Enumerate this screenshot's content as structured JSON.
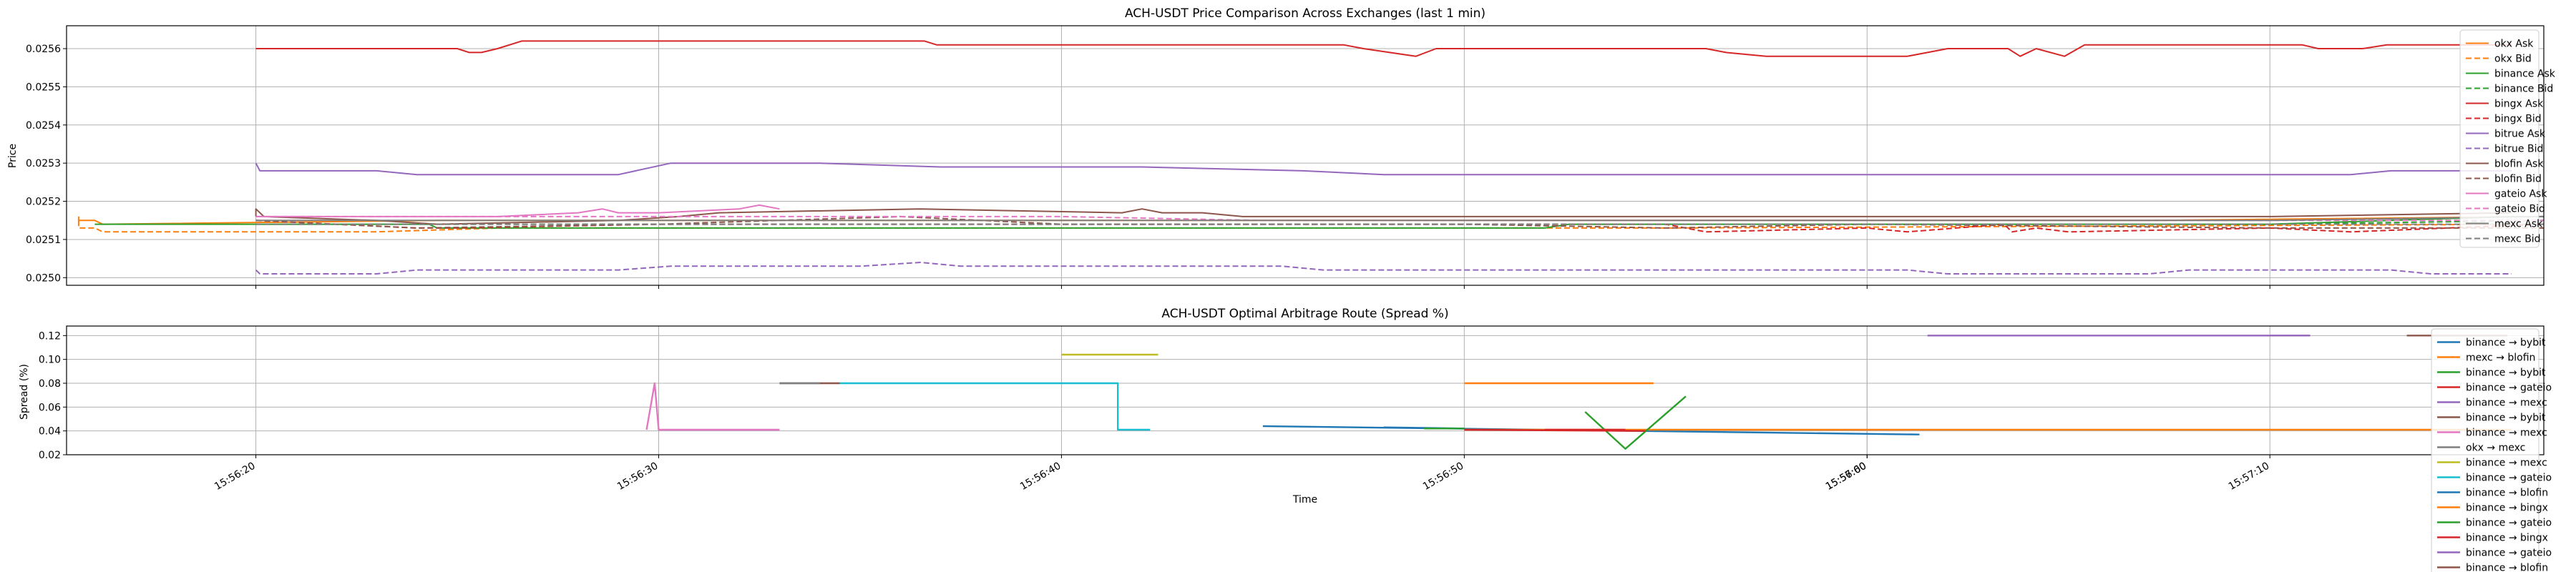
{
  "chart_data": [
    {
      "type": "line",
      "title": "ACH-USDT Price Comparison Across Exchanges (last 1 min)",
      "xlabel": "",
      "ylabel": "Price",
      "ylim": [
        0.02498,
        0.02566
      ],
      "yticks": [
        "0.0250",
        "0.0251",
        "0.0252",
        "0.0253",
        "0.0254",
        "0.0255",
        "0.0256"
      ],
      "xlim": [
        "15:56:15.3",
        "15:57:16.8"
      ],
      "xticks": [
        "15:56:20",
        "15:56:30",
        "15:56:40",
        "15:56:50",
        "15:57:00",
        "15:57:10"
      ],
      "grid": true,
      "legend": "right",
      "series": [
        {
          "name": "okx Ask",
          "color": "#ff7f0e",
          "dash": false,
          "x": [
            "15:56:15.6",
            "15:56:15.6",
            "15:56:16.0",
            "15:56:16.2",
            "15:56:24.6",
            "15:56:25.0",
            "15:56:38.0",
            "15:56:55.0",
            "15:57:07.0",
            "15:57:16.8"
          ],
          "y": [
            0.02516,
            0.02515,
            0.02515,
            0.02514,
            0.02515,
            0.02515,
            0.02515,
            0.02515,
            0.02515,
            0.02516
          ]
        },
        {
          "name": "okx Bid",
          "color": "#ff7f0e",
          "dash": true,
          "x": [
            "15:56:15.6",
            "15:56:15.6",
            "15:56:16.0",
            "15:56:16.2",
            "15:56:20.0",
            "15:56:23.0",
            "15:56:26.0",
            "15:56:40.0",
            "15:56:55.0",
            "15:57:16.8"
          ],
          "y": [
            0.02515,
            0.02513,
            0.02513,
            0.02512,
            0.02512,
            0.02512,
            0.02513,
            0.02513,
            0.02513,
            0.02514
          ]
        },
        {
          "name": "binance Ask",
          "color": "#2ca02c",
          "dash": false,
          "x": [
            "15:56:16.0",
            "15:56:20.0",
            "15:56:24.3",
            "15:56:24.5",
            "15:56:30.0",
            "15:56:40.0",
            "15:56:52.0",
            "15:56:52.6",
            "15:57:00.0",
            "15:57:10.0",
            "15:57:16.0",
            "15:57:16.8"
          ],
          "y": [
            0.02514,
            0.02514,
            0.02514,
            0.02513,
            0.02513,
            0.02513,
            0.02513,
            0.02514,
            0.02514,
            0.02514,
            0.02516,
            0.02516
          ]
        },
        {
          "name": "binance Bid",
          "color": "#2ca02c",
          "dash": true,
          "x": [
            "15:56:20.0",
            "15:56:30.0",
            "15:56:40.0",
            "15:56:50.0",
            "15:57:00.0",
            "15:57:10.0",
            "15:57:16.8"
          ],
          "y": [
            0.02514,
            0.02514,
            0.02514,
            0.02514,
            0.02514,
            0.02514,
            0.02515
          ]
        },
        {
          "name": "bingx Ask",
          "color": "#d62728",
          "dash": false,
          "x": [
            "15:56:20.0",
            "15:56:25.0",
            "15:56:25.3",
            "15:56:25.6",
            "15:56:26.0",
            "15:56:26.6",
            "15:56:36.6",
            "15:56:36.9",
            "15:56:47.0",
            "15:56:47.5",
            "15:56:48.8",
            "15:56:49.3",
            "15:56:50.0",
            "15:56:56.0",
            "15:56:56.5",
            "15:56:57.5",
            "15:57:01.0",
            "15:57:01.5",
            "15:57:02.0",
            "15:57:03.5",
            "15:57:03.8",
            "15:57:04.2",
            "15:57:04.9",
            "15:57:05.4",
            "15:57:10.8",
            "15:57:11.2",
            "15:57:12.3",
            "15:57:12.9",
            "15:57:16.0"
          ],
          "y": [
            0.0256,
            0.0256,
            0.02559,
            0.02559,
            0.0256,
            0.02562,
            0.02562,
            0.02561,
            0.02561,
            0.0256,
            0.02558,
            0.0256,
            0.0256,
            0.0256,
            0.02559,
            0.02558,
            0.02558,
            0.02559,
            0.0256,
            0.0256,
            0.02558,
            0.0256,
            0.02558,
            0.02561,
            0.02561,
            0.0256,
            0.0256,
            0.02561,
            0.02561
          ]
        },
        {
          "name": "bingx Bid",
          "color": "#d62728",
          "dash": true,
          "x": [
            "15:56:20.0",
            "15:56:24.0",
            "15:56:25.0",
            "15:56:30.0",
            "15:56:40.0",
            "15:56:55.0",
            "15:56:56.0",
            "15:57:00.0",
            "15:57:01.0",
            "15:57:03.4",
            "15:57:03.6",
            "15:57:04.2",
            "15:57:05.0",
            "15:57:10.0",
            "15:57:12.0",
            "15:57:16.8"
          ],
          "y": [
            0.02515,
            0.02513,
            0.02513,
            0.02514,
            0.02514,
            0.02514,
            0.02512,
            0.02513,
            0.02512,
            0.02514,
            0.02512,
            0.02513,
            0.02512,
            0.02513,
            0.02512,
            0.02514
          ]
        },
        {
          "name": "bitrue Ask",
          "color": "#9467bd",
          "dash": false,
          "x": [
            "15:56:20.0",
            "15:56:20.1",
            "15:56:20.2",
            "15:56:23.0",
            "15:56:24.0",
            "15:56:29.0",
            "15:56:30.3",
            "15:56:34.0",
            "15:56:37.0",
            "15:56:42.0",
            "15:56:46.0",
            "15:56:48.0",
            "15:56:55.0",
            "15:57:10.0",
            "15:57:12.0",
            "15:57:13.0",
            "15:57:16.0"
          ],
          "y": [
            0.0253,
            0.02528,
            0.02528,
            0.02528,
            0.02527,
            0.02527,
            0.0253,
            0.0253,
            0.02529,
            0.02529,
            0.02528,
            0.02527,
            0.02527,
            0.02527,
            0.02527,
            0.02528,
            0.02528
          ]
        },
        {
          "name": "bitrue Bid",
          "color": "#9467bd",
          "dash": true,
          "x": [
            "15:56:20.0",
            "15:56:20.1",
            "15:56:20.2",
            "15:56:23.0",
            "15:56:24.0",
            "15:56:29.0",
            "15:56:30.3",
            "15:56:35.0",
            "15:56:36.5",
            "15:56:37.5",
            "15:56:41.0",
            "15:56:45.5",
            "15:56:46.5",
            "15:56:55.0",
            "15:57:01.0",
            "15:57:02.0",
            "15:57:07.0",
            "15:57:08.0",
            "15:57:13.0",
            "15:57:14.0",
            "15:57:16.0"
          ],
          "y": [
            0.02502,
            0.02501,
            0.02501,
            0.02501,
            0.02502,
            0.02502,
            0.02503,
            0.02503,
            0.02504,
            0.02503,
            0.02503,
            0.02503,
            0.02502,
            0.02502,
            0.02502,
            0.02501,
            0.02501,
            0.02502,
            0.02502,
            0.02501,
            0.02501
          ]
        },
        {
          "name": "blofin Ask",
          "color": "#8c564b",
          "dash": false,
          "x": [
            "15:56:20.0",
            "15:56:20.0",
            "15:56:20.2",
            "15:56:23.0",
            "15:56:24.5",
            "15:56:29.0",
            "15:56:30.5",
            "15:56:31.5",
            "15:56:36.5",
            "15:56:41.5",
            "15:56:42.0",
            "15:56:42.5",
            "15:56:43.5",
            "15:56:44.5",
            "15:56:48.0",
            "15:56:55.0",
            "15:57:00.0",
            "15:57:05.0",
            "15:57:10.0",
            "15:57:16.0"
          ],
          "y": [
            0.02516,
            0.02518,
            0.02516,
            0.02515,
            0.02514,
            0.02515,
            0.02516,
            0.02517,
            0.02518,
            0.02517,
            0.02518,
            0.02517,
            0.02517,
            0.02516,
            0.02516,
            0.02516,
            0.02516,
            0.02516,
            0.02516,
            0.02517
          ]
        },
        {
          "name": "blofin Bid",
          "color": "#8c564b",
          "dash": true,
          "x": [
            "15:56:20.0",
            "15:56:24.0",
            "15:56:30.0",
            "15:56:36.0",
            "15:56:40.0",
            "15:56:50.0",
            "15:56:55.0",
            "15:57:00.0",
            "15:57:10.0",
            "15:57:16.8"
          ],
          "y": [
            0.02515,
            0.02513,
            0.02514,
            0.02516,
            0.02514,
            0.02514,
            0.02513,
            0.02514,
            0.02513,
            0.02513
          ]
        },
        {
          "name": "gateio Ask",
          "color": "#e377c2",
          "dash": false,
          "x": [
            "15:56:20.0",
            "15:56:23.0",
            "15:56:25.0",
            "15:56:26.0",
            "15:56:28.0",
            "15:56:28.6",
            "15:56:29.0",
            "15:56:30.0",
            "15:56:32.0",
            "15:56:32.5",
            "15:56:33.0"
          ],
          "y": [
            0.02516,
            0.02516,
            0.02516,
            0.02516,
            0.02517,
            0.02518,
            0.02517,
            0.02517,
            0.02518,
            0.02519,
            0.02518
          ]
        },
        {
          "name": "gateio Bid",
          "color": "#e377c2",
          "dash": true,
          "x": [
            "15:56:20.0",
            "15:56:25.0",
            "15:56:30.0",
            "15:56:35.0",
            "15:56:40.0",
            "15:56:45.0",
            "15:56:55.0",
            "15:57:05.0",
            "15:57:16.8"
          ],
          "y": [
            0.02516,
            0.02516,
            0.02516,
            0.02516,
            0.02516,
            0.02515,
            0.02515,
            0.02515,
            0.02515
          ]
        },
        {
          "name": "mexc Ask",
          "color": "#7f7f7f",
          "dash": false,
          "x": [
            "15:56:20.0",
            "15:56:25.0",
            "15:56:30.0",
            "15:56:40.0",
            "15:56:50.0",
            "15:57:00.0",
            "15:57:10.0",
            "15:57:16.8"
          ],
          "y": [
            0.02515,
            0.02515,
            0.02515,
            0.02515,
            0.02515,
            0.02515,
            0.02515,
            0.02516
          ]
        },
        {
          "name": "mexc Bid",
          "color": "#7f7f7f",
          "dash": true,
          "x": [
            "15:56:20.0",
            "15:56:25.0",
            "15:56:30.0",
            "15:56:40.0",
            "15:56:50.0",
            "15:57:00.0",
            "15:57:10.0",
            "15:57:16.8"
          ],
          "y": [
            0.02514,
            0.02514,
            0.02514,
            0.02514,
            0.02514,
            0.02514,
            0.02514,
            0.02514
          ]
        }
      ]
    },
    {
      "type": "line",
      "title": "ACH-USDT Optimal Arbitrage Route (Spread %)",
      "xlabel": "Time",
      "ylabel": "Spread (%)",
      "ylim": [
        0.02,
        0.128
      ],
      "yticks": [
        "0.02",
        "0.04",
        "0.06",
        "0.08",
        "0.10",
        "0.12"
      ],
      "xlim": [
        "15:56:15.3",
        "15:57:16.8"
      ],
      "xticks": [
        "15:56:20",
        "15:56:30",
        "15:56:40",
        "15:56:50",
        "15:56:60",
        "15:57:00",
        "15:57:10"
      ],
      "grid": true,
      "legend": "right",
      "series": [
        {
          "name": "binance → bybit",
          "color": "#1f77b4",
          "x": [
            "15:56:45.0",
            "15:57:01.3"
          ],
          "y": [
            0.044,
            0.037
          ]
        },
        {
          "name": "mexc → blofin",
          "color": "#ff7f0e",
          "x": [
            "15:56:50.0",
            "15:57:16.0"
          ],
          "y": [
            0.041,
            0.041
          ]
        },
        {
          "name": "binance → bybit",
          "color": "#2ca02c",
          "x": [
            "15:56:53.0",
            "15:56:54.0",
            "15:56:55.5"
          ],
          "y": [
            0.056,
            0.025,
            0.069
          ]
        },
        {
          "name": "binance → gateio",
          "color": "#d62728",
          "x": [
            "15:56:50.0",
            "15:56:54.5"
          ],
          "y": [
            0.041,
            0.04
          ]
        },
        {
          "name": "binance → mexc",
          "color": "#9467bd",
          "x": [
            "15:57:01.5",
            "15:57:11.0"
          ],
          "y": [
            0.12,
            0.12
          ]
        },
        {
          "name": "binance → bybit",
          "color": "#8c564b",
          "x": [
            "15:56:33.0",
            "15:56:34.5"
          ],
          "y": [
            0.08,
            0.08
          ]
        },
        {
          "name": "binance → mexc",
          "color": "#e377c2",
          "x": [
            "15:56:29.7",
            "15:56:29.9",
            "15:56:30.0",
            "15:56:33.0"
          ],
          "y": [
            0.041,
            0.08,
            0.041,
            0.041
          ]
        },
        {
          "name": "okx → mexc",
          "color": "#7f7f7f",
          "x": [
            "15:56:33.0",
            "15:56:34.0"
          ],
          "y": [
            0.08,
            0.08
          ]
        },
        {
          "name": "binance → mexc",
          "color": "#bcbd22",
          "x": [
            "15:56:40.0",
            "15:56:42.4"
          ],
          "y": [
            0.104,
            0.104
          ]
        },
        {
          "name": "binance → gateio",
          "color": "#17becf",
          "x": [
            "15:56:34.5",
            "15:56:41.4",
            "15:56:41.4",
            "15:56:42.2"
          ],
          "y": [
            0.08,
            0.08,
            0.041,
            0.041
          ]
        },
        {
          "name": "binance → blofin",
          "color": "#1f77b4",
          "x": [
            "15:56:48.0",
            "15:56:50.0"
          ],
          "y": [
            0.043,
            0.042
          ]
        },
        {
          "name": "binance → bingx",
          "color": "#ff7f0e",
          "x": [
            "15:56:50.0",
            "15:56:54.7"
          ],
          "y": [
            0.08,
            0.08
          ]
        },
        {
          "name": "binance → gateio",
          "color": "#2ca02c",
          "x": [
            "15:56:49.0",
            "15:56:50.0"
          ],
          "y": [
            0.042,
            0.042
          ]
        },
        {
          "name": "binance → bingx",
          "color": "#d62728",
          "x": [
            "15:56:52.0",
            "15:56:54.0"
          ],
          "y": [
            0.041,
            0.041
          ]
        },
        {
          "name": "binance → gateio",
          "color": "#9467bd",
          "x": [
            "15:57:10.0",
            "15:57:11.0"
          ],
          "y": [
            0.12,
            0.12
          ]
        },
        {
          "name": "binance → blofin",
          "color": "#8c564b",
          "x": [
            "15:57:13.4",
            "15:57:15.9"
          ],
          "y": [
            0.12,
            0.12
          ]
        }
      ]
    }
  ]
}
